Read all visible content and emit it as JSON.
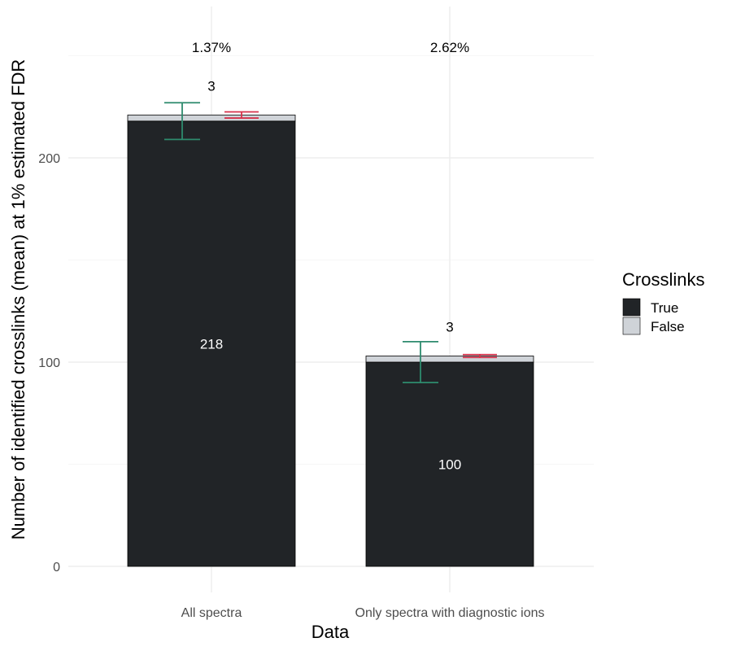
{
  "chart_data": {
    "type": "bar",
    "stacked": true,
    "xlabel": "Data",
    "ylabel": "Number of identified crosslinks (mean) at 1% estimated FDR",
    "categories": [
      "All spectra",
      "Only spectra with diagnostic ions"
    ],
    "ylim": [
      0,
      250
    ],
    "yticks": [
      0,
      100,
      200
    ],
    "series": [
      {
        "name": "True",
        "values": [
          218,
          100
        ],
        "color": "#212427"
      },
      {
        "name": "False",
        "values": [
          3,
          3
        ],
        "color": "#cfd3d8"
      }
    ],
    "bar_labels_true": [
      "218",
      "100"
    ],
    "bar_labels_false": [
      "3",
      "3"
    ],
    "fdr_labels": [
      "1.37%",
      "2.62%"
    ],
    "error_bars_true": [
      {
        "center": 218,
        "low": 209,
        "high": 227,
        "color": "#2e8b6e"
      },
      {
        "center": 100,
        "low": 90,
        "high": 110,
        "color": "#2e8b6e"
      }
    ],
    "error_bars_false": [
      {
        "center": 221,
        "low": 219.5,
        "high": 222.5,
        "color": "#d6334c"
      },
      {
        "center": 103,
        "low": 102.3,
        "high": 103.7,
        "color": "#d6334c"
      }
    ],
    "legend": {
      "title": "Crosslinks",
      "position": "right"
    },
    "grid": true
  }
}
